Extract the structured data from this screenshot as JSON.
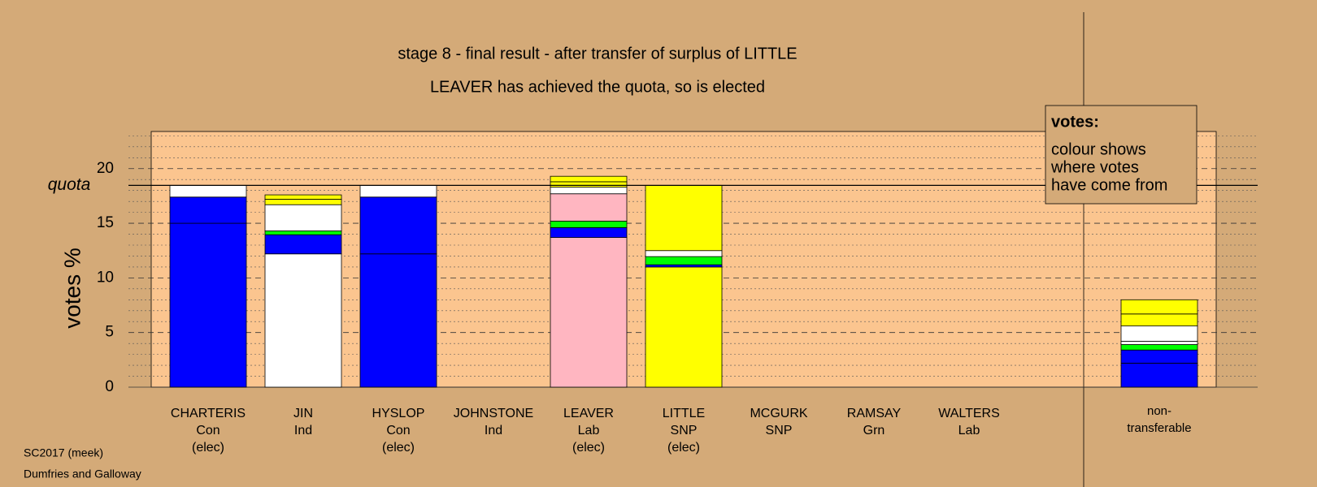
{
  "chart_data": {
    "type": "stacked-bar",
    "title": "stage 8 - final result - after transfer of surplus of LITTLE",
    "subtitle": "LEAVER has achieved the quota, so is elected",
    "y_label": "votes %",
    "categories": [
      [
        "CHARTERIS",
        "Con",
        "(elec)"
      ],
      [
        "JIN",
        "Ind"
      ],
      [
        "HYSLOP",
        "Con",
        "(elec)"
      ],
      [
        "JOHNSTONE",
        "Ind"
      ],
      [
        "LEAVER",
        "Lab",
        "(elec)"
      ],
      [
        "LITTLE",
        "SNP",
        "(elec)"
      ],
      [
        "MCGURK",
        "SNP"
      ],
      [
        "RAMSAY",
        "Grn"
      ],
      [
        "WALTERS",
        "Lab"
      ],
      [
        "non-",
        "transferable"
      ]
    ],
    "stacks": [
      [
        {
          "color": "#0000ff",
          "value": 15.0
        },
        {
          "color": "#0000ff",
          "value": 2.4
        },
        {
          "color": "#ffffff",
          "value": 1.07
        }
      ],
      [
        {
          "color": "#ffffff",
          "value": 12.2
        },
        {
          "color": "#0000ff",
          "value": 1.75
        },
        {
          "color": "#00ff00",
          "value": 0.35
        },
        {
          "color": "#ffffff",
          "value": 2.4
        },
        {
          "color": "#ffff00",
          "value": 0.5
        },
        {
          "color": "#ffff00",
          "value": 0.4
        }
      ],
      [
        {
          "color": "#0000ff",
          "value": 12.2
        },
        {
          "color": "#0000ff",
          "value": 5.2
        },
        {
          "color": "#ffffff",
          "value": 1.07
        }
      ],
      [],
      [
        {
          "color": "#ffb6c1",
          "value": 13.7
        },
        {
          "color": "#0000ff",
          "value": 0.9
        },
        {
          "color": "#00ff00",
          "value": 0.6
        },
        {
          "color": "#ffb6c1",
          "value": 2.5
        },
        {
          "color": "#ffffff",
          "value": 0.6
        },
        {
          "color": "#ffff00",
          "value": 0.5
        },
        {
          "color": "#ffff00",
          "value": 0.5
        }
      ],
      [
        {
          "color": "#ffff00",
          "value": 11.0
        },
        {
          "color": "#0000ff",
          "value": 0.2
        },
        {
          "color": "#00ff00",
          "value": 0.75
        },
        {
          "color": "#ffffff",
          "value": 0.55
        },
        {
          "color": "#ffff00",
          "value": 5.97
        }
      ],
      [],
      [],
      [],
      [
        {
          "color": "#0000ff",
          "value": 2.2
        },
        {
          "color": "#0000ff",
          "value": 1.2
        },
        {
          "color": "#00ff00",
          "value": 0.5
        },
        {
          "color": "#ffffff",
          "value": 0.3
        },
        {
          "color": "#ffffff",
          "value": 1.4
        },
        {
          "color": "#ffff00",
          "value": 1.1
        },
        {
          "color": "#ffff00",
          "value": 1.3
        }
      ]
    ],
    "quota": {
      "label": "quota",
      "value": 18.47
    },
    "ylim": [
      0,
      23.4
    ],
    "yticks": [
      0,
      5,
      10,
      15,
      20
    ],
    "minor_yticks": [
      1,
      2,
      3,
      4,
      6,
      7,
      8,
      9,
      11,
      12,
      13,
      14,
      16,
      17,
      18,
      19,
      21,
      22,
      23
    ],
    "grid": true,
    "legend": {
      "title": "votes:",
      "lines": [
        "colour shows",
        "where votes",
        "have come from"
      ]
    },
    "footer": [
      "SC2017 (meek)",
      "Dumfries and Galloway"
    ]
  }
}
